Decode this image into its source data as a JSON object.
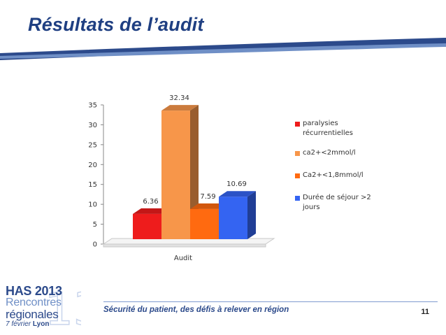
{
  "slide": {
    "title": "Résultats de l’audit",
    "footer": "Sécurité du patient, des défis à relever en région",
    "page_number": "11"
  },
  "logo": {
    "line1_has": "HAS",
    "line1_year": "2013",
    "line2": "Rencontres",
    "line3": "régionales",
    "line4_date": "7 février",
    "line4_city": "Lyon",
    "big_digits": "13"
  },
  "colors": {
    "title": "#1f3f82",
    "accent_band": "#2c4a8b"
  },
  "chart_data": {
    "type": "bar",
    "categories": [
      "Audit"
    ],
    "series": [
      {
        "name": "paralysies récurrentielles",
        "values": [
          6.36
        ],
        "label": "6.36",
        "color": "#ee1c1c"
      },
      {
        "name": "ca2+<2mmol/l",
        "values": [
          32.34
        ],
        "label": "32.34",
        "color": "#f7964a"
      },
      {
        "name": "Ca2+<1,8mmol/l",
        "values": [
          7.59
        ],
        "label": "7.59",
        "color": "#ff6a10"
      },
      {
        "name": "Durée de séjour >2 jours",
        "values": [
          10.69
        ],
        "label": "10.69",
        "color": "#3464f2"
      }
    ],
    "legend": [
      {
        "lines": [
          "paralysies",
          "récurrentielles"
        ]
      },
      {
        "lines": [
          "ca2+<2mmol/l"
        ]
      },
      {
        "lines": [
          "Ca2+<1,8mmol/l"
        ]
      },
      {
        "lines": [
          "Durée de séjour >2",
          "jours"
        ]
      }
    ],
    "yticks": [
      "0",
      "5",
      "10",
      "15",
      "20",
      "25",
      "30",
      "35"
    ],
    "ylim": [
      0,
      35
    ],
    "xlabel": "Audit",
    "legend_position": "right",
    "grid": false
  }
}
